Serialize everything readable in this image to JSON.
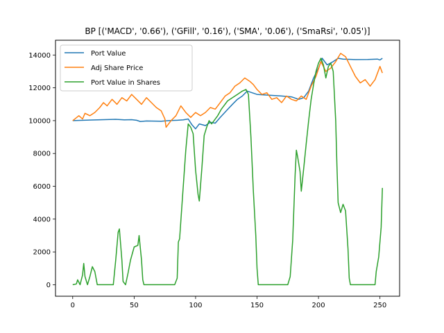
{
  "chart_data": {
    "type": "line",
    "title": "BP [('MACD', '0.66'), ('GFill', '0.16'), ('SMA', '0.06'), ('SmaRsi', '0.05')]",
    "xlabel": "",
    "ylabel": "",
    "xlim": [
      -14,
      266
    ],
    "ylim": [
      -700,
      14900
    ],
    "x_ticks": [
      0,
      50,
      100,
      150,
      200,
      250
    ],
    "y_ticks": [
      0,
      2000,
      4000,
      6000,
      8000,
      10000,
      12000,
      14000
    ],
    "grid": false,
    "legend_position": "upper-left",
    "series": [
      {
        "name": "Port Value",
        "color": "#1f77b4",
        "points": [
          [
            0,
            10000
          ],
          [
            20,
            10050
          ],
          [
            35,
            10080
          ],
          [
            42,
            10050
          ],
          [
            48,
            10060
          ],
          [
            52,
            10020
          ],
          [
            55,
            9950
          ],
          [
            60,
            9980
          ],
          [
            72,
            9960
          ],
          [
            78,
            10000
          ],
          [
            85,
            10020
          ],
          [
            90,
            10050
          ],
          [
            94,
            10100
          ],
          [
            97,
            9750
          ],
          [
            100,
            9500
          ],
          [
            103,
            9800
          ],
          [
            108,
            9700
          ],
          [
            112,
            9900
          ],
          [
            116,
            9850
          ],
          [
            120,
            10200
          ],
          [
            125,
            10600
          ],
          [
            130,
            11000
          ],
          [
            134,
            11300
          ],
          [
            138,
            11500
          ],
          [
            142,
            11800
          ],
          [
            146,
            11700
          ],
          [
            150,
            11600
          ],
          [
            160,
            11550
          ],
          [
            170,
            11500
          ],
          [
            178,
            11450
          ],
          [
            184,
            11300
          ],
          [
            188,
            11400
          ],
          [
            192,
            11800
          ],
          [
            196,
            12600
          ],
          [
            200,
            13200
          ],
          [
            203,
            13800
          ],
          [
            207,
            13400
          ],
          [
            212,
            13600
          ],
          [
            216,
            13800
          ],
          [
            220,
            13750
          ],
          [
            230,
            13720
          ],
          [
            240,
            13730
          ],
          [
            248,
            13750
          ],
          [
            250,
            13700
          ],
          [
            252,
            13800
          ]
        ]
      },
      {
        "name": "Adj Share Price",
        "color": "#ff7f0e",
        "points": [
          [
            0,
            10000
          ],
          [
            5,
            10300
          ],
          [
            8,
            10100
          ],
          [
            10,
            10450
          ],
          [
            14,
            10300
          ],
          [
            18,
            10500
          ],
          [
            22,
            10800
          ],
          [
            25,
            11100
          ],
          [
            28,
            10900
          ],
          [
            32,
            11300
          ],
          [
            36,
            11000
          ],
          [
            40,
            11400
          ],
          [
            44,
            11200
          ],
          [
            48,
            11600
          ],
          [
            52,
            11300
          ],
          [
            56,
            11000
          ],
          [
            60,
            11400
          ],
          [
            64,
            11100
          ],
          [
            68,
            10800
          ],
          [
            72,
            10600
          ],
          [
            75,
            10100
          ],
          [
            76,
            9600
          ],
          [
            80,
            10000
          ],
          [
            84,
            10300
          ],
          [
            88,
            10900
          ],
          [
            92,
            10500
          ],
          [
            96,
            10200
          ],
          [
            100,
            10500
          ],
          [
            104,
            10300
          ],
          [
            108,
            10500
          ],
          [
            112,
            10800
          ],
          [
            116,
            10700
          ],
          [
            120,
            11100
          ],
          [
            124,
            11500
          ],
          [
            128,
            11700
          ],
          [
            132,
            12100
          ],
          [
            136,
            12300
          ],
          [
            140,
            12600
          ],
          [
            144,
            12400
          ],
          [
            147,
            12200
          ],
          [
            150,
            11900
          ],
          [
            154,
            11600
          ],
          [
            158,
            11700
          ],
          [
            162,
            11300
          ],
          [
            166,
            11400
          ],
          [
            170,
            11100
          ],
          [
            174,
            11500
          ],
          [
            178,
            11300
          ],
          [
            182,
            11200
          ],
          [
            186,
            11500
          ],
          [
            190,
            11300
          ],
          [
            194,
            12100
          ],
          [
            198,
            12700
          ],
          [
            202,
            13600
          ],
          [
            206,
            13000
          ],
          [
            210,
            13200
          ],
          [
            214,
            13600
          ],
          [
            218,
            14100
          ],
          [
            222,
            13900
          ],
          [
            226,
            13300
          ],
          [
            230,
            12700
          ],
          [
            234,
            12300
          ],
          [
            238,
            12500
          ],
          [
            242,
            12100
          ],
          [
            246,
            12500
          ],
          [
            250,
            13300
          ],
          [
            252,
            12900
          ]
        ]
      },
      {
        "name": "Port Value in Shares",
        "color": "#2ca02c",
        "points": [
          [
            0,
            0
          ],
          [
            3,
            50
          ],
          [
            4,
            300
          ],
          [
            6,
            0
          ],
          [
            8,
            600
          ],
          [
            9,
            1300
          ],
          [
            10,
            500
          ],
          [
            12,
            0
          ],
          [
            14,
            500
          ],
          [
            16,
            1100
          ],
          [
            18,
            800
          ],
          [
            20,
            0
          ],
          [
            33,
            0
          ],
          [
            35,
            1500
          ],
          [
            37,
            3200
          ],
          [
            38,
            3400
          ],
          [
            40,
            1500
          ],
          [
            41,
            200
          ],
          [
            43,
            0
          ],
          [
            45,
            700
          ],
          [
            47,
            1500
          ],
          [
            50,
            2300
          ],
          [
            53,
            2400
          ],
          [
            54,
            3000
          ],
          [
            56,
            1500
          ],
          [
            57,
            300
          ],
          [
            58,
            0
          ],
          [
            83,
            0
          ],
          [
            85,
            400
          ],
          [
            86,
            2600
          ],
          [
            87,
            2800
          ],
          [
            89,
            5000
          ],
          [
            92,
            8200
          ],
          [
            94,
            9800
          ],
          [
            96,
            9600
          ],
          [
            98,
            9200
          ],
          [
            100,
            7000
          ],
          [
            102,
            5500
          ],
          [
            103,
            5100
          ],
          [
            105,
            7000
          ],
          [
            107,
            9100
          ],
          [
            109,
            9600
          ],
          [
            111,
            10000
          ],
          [
            113,
            9800
          ],
          [
            115,
            10000
          ],
          [
            118,
            10300
          ],
          [
            121,
            10700
          ],
          [
            126,
            11200
          ],
          [
            130,
            11400
          ],
          [
            134,
            11600
          ],
          [
            138,
            11800
          ],
          [
            141,
            11900
          ],
          [
            143,
            11600
          ],
          [
            145,
            9000
          ],
          [
            147,
            5700
          ],
          [
            149,
            3000
          ],
          [
            150,
            1000
          ],
          [
            151,
            0
          ],
          [
            175,
            0
          ],
          [
            177,
            500
          ],
          [
            179,
            2700
          ],
          [
            181,
            6700
          ],
          [
            182,
            8200
          ],
          [
            183,
            7800
          ],
          [
            185,
            6900
          ],
          [
            186,
            5700
          ],
          [
            188,
            7100
          ],
          [
            190,
            8600
          ],
          [
            192,
            10000
          ],
          [
            194,
            11300
          ],
          [
            196,
            12200
          ],
          [
            198,
            13000
          ],
          [
            200,
            13500
          ],
          [
            202,
            13800
          ],
          [
            204,
            13400
          ],
          [
            206,
            12600
          ],
          [
            208,
            13300
          ],
          [
            210,
            13500
          ],
          [
            212,
            13000
          ],
          [
            214,
            10000
          ],
          [
            215,
            7200
          ],
          [
            216,
            5000
          ],
          [
            218,
            4400
          ],
          [
            220,
            4900
          ],
          [
            222,
            4500
          ],
          [
            224,
            2200
          ],
          [
            225,
            400
          ],
          [
            226,
            0
          ],
          [
            246,
            0
          ],
          [
            247,
            800
          ],
          [
            249,
            1700
          ],
          [
            251,
            3500
          ],
          [
            252,
            5900
          ]
        ]
      }
    ]
  }
}
